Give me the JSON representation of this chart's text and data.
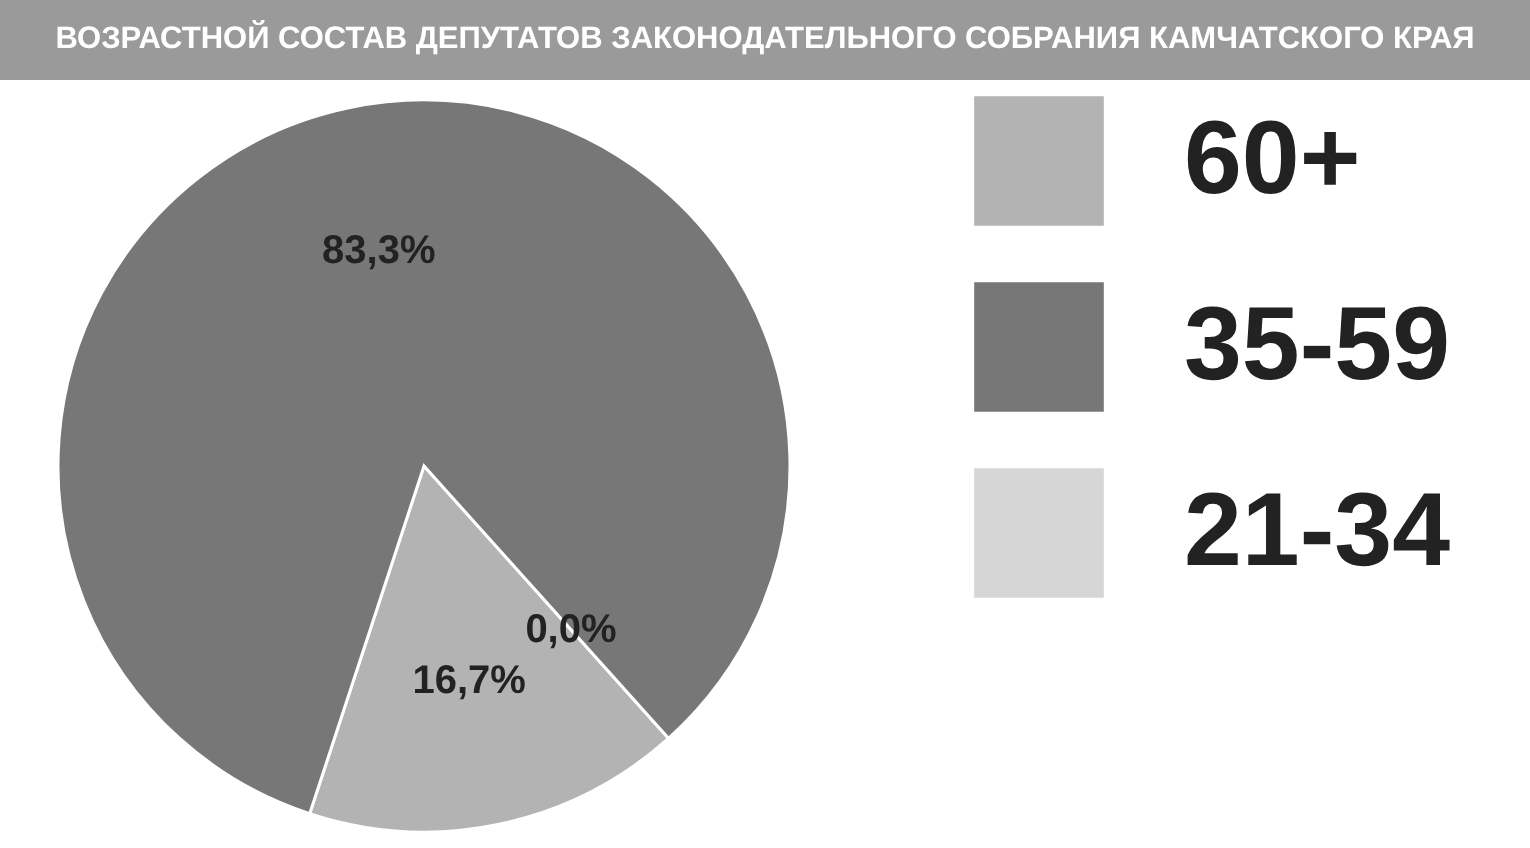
{
  "chart_data": {
    "type": "pie",
    "title": "ВОЗРАСТНОЙ СОСТАВ ДЕПУТАТОВ ЗАКОНОДАТЕЛЬНОГО СОБРАНИЯ КАМЧАТСКОГО КРАЯ",
    "categories": [
      "60+",
      "35-59",
      "21-34"
    ],
    "values": [
      16.7,
      83.3,
      0.0
    ],
    "colors": [
      "#b3b3b3",
      "#777777",
      "#d6d6d6"
    ],
    "value_labels": [
      "16,7%",
      "83,3%",
      "0,0%"
    ],
    "legend": "right"
  }
}
